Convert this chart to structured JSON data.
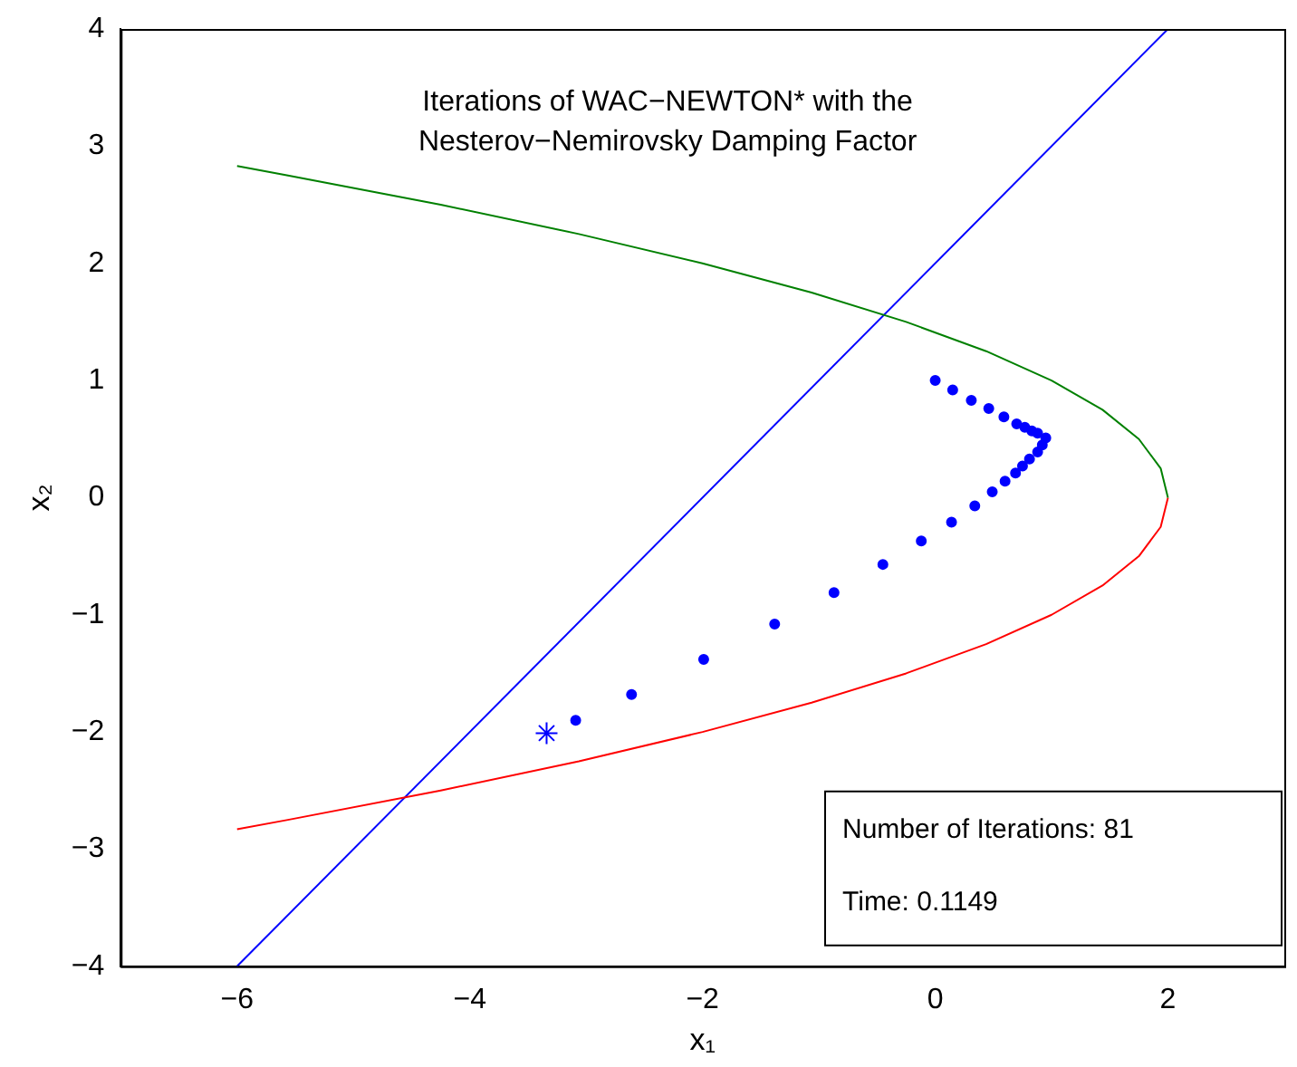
{
  "chart_data": {
    "type": "scatter",
    "title": "Iterations of WAC−NEWTON* with the\nNesterov−Nemirovsky Damping Factor",
    "xlabel": "x₁",
    "ylabel": "x₂",
    "annotations": [
      "Number of Iterations: 81",
      "Time: 0.1149"
    ],
    "xlim": [
      -7,
      3
    ],
    "xticks": [
      -6,
      -4,
      -2,
      0,
      2
    ],
    "ylim": [
      -4,
      4
    ],
    "yticks": [
      -4,
      -3,
      -2,
      -1,
      0,
      1,
      2,
      3,
      4
    ],
    "grid": false,
    "legend": false,
    "series": [
      {
        "type": "line",
        "color": "#008000",
        "marker": "none",
        "x": [
          2,
          1.9375,
          1.75,
          1.4375,
          1,
          0.4375,
          -0.25,
          -1.0625,
          -2,
          -3.0625,
          -4.25,
          -5.5625,
          -6
        ],
        "values": [
          0,
          0.25,
          0.5,
          0.75,
          1,
          1.25,
          1.5,
          1.75,
          2,
          2.25,
          2.5,
          2.75,
          2.83
        ]
      },
      {
        "type": "line",
        "color": "#ff0000",
        "marker": "none",
        "x": [
          2,
          1.9375,
          1.75,
          1.4375,
          1,
          0.4375,
          -0.25,
          -1.0625,
          -2,
          -3.0625,
          -4.25,
          -5.5625,
          -6
        ],
        "values": [
          0,
          -0.25,
          -0.5,
          -0.75,
          -1,
          -1.25,
          -1.5,
          -1.75,
          -2,
          -2.25,
          -2.5,
          -2.75,
          -2.83
        ]
      },
      {
        "type": "line",
        "color": "#0000ff",
        "marker": "none",
        "x": [
          -6,
          2
        ],
        "values": [
          -4,
          4
        ]
      },
      {
        "type": "scatter",
        "color": "#0000ff",
        "marker": "circle",
        "x": [
          0.15,
          0.31,
          0.46,
          0.59,
          0.7,
          0.77,
          0.83,
          0.88,
          0.95,
          0.92,
          0.88,
          0.81,
          0.75,
          0.69,
          0.6,
          0.49,
          0.34,
          0.14,
          -0.12,
          -0.45,
          -0.87,
          -1.38,
          -1.99,
          -2.61,
          -3.09
        ],
        "values": [
          0.92,
          0.83,
          0.76,
          0.69,
          0.63,
          0.6,
          0.57,
          0.55,
          0.51,
          0.45,
          0.39,
          0.33,
          0.27,
          0.21,
          0.14,
          0.05,
          -0.07,
          -0.21,
          -0.37,
          -0.57,
          -0.81,
          -1.08,
          -1.38,
          -1.68,
          -1.9
        ]
      },
      {
        "type": "scatter",
        "color": "#0000ff",
        "marker": "circle",
        "x": [
          0
        ],
        "values": [
          1
        ]
      },
      {
        "type": "scatter",
        "color": "#0000ff",
        "marker": "cross",
        "x": [
          -3.34
        ],
        "values": [
          -2.01
        ]
      }
    ]
  }
}
